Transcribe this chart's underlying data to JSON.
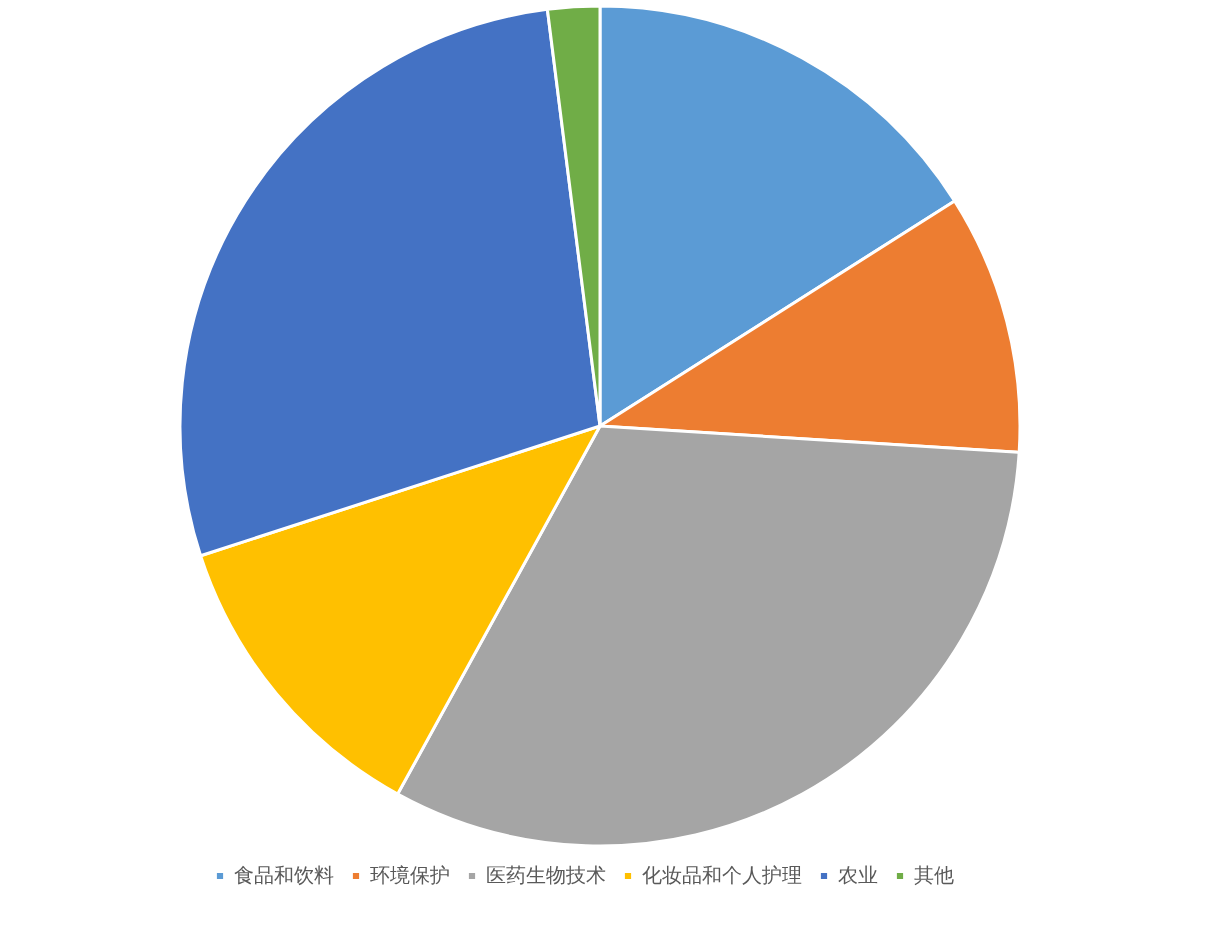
{
  "chart_data": {
    "type": "pie",
    "categories": [
      "食品和饮料",
      "环境保护",
      "医药生物技术",
      "化妆品和个人护理",
      "农业",
      "其他"
    ],
    "values": [
      16,
      10,
      32,
      12,
      28,
      2
    ],
    "colors": [
      "#5b9bd5",
      "#ed7d31",
      "#a5a5a5",
      "#ffc000",
      "#4472c4",
      "#70ad47"
    ],
    "legend": "bottom right"
  }
}
